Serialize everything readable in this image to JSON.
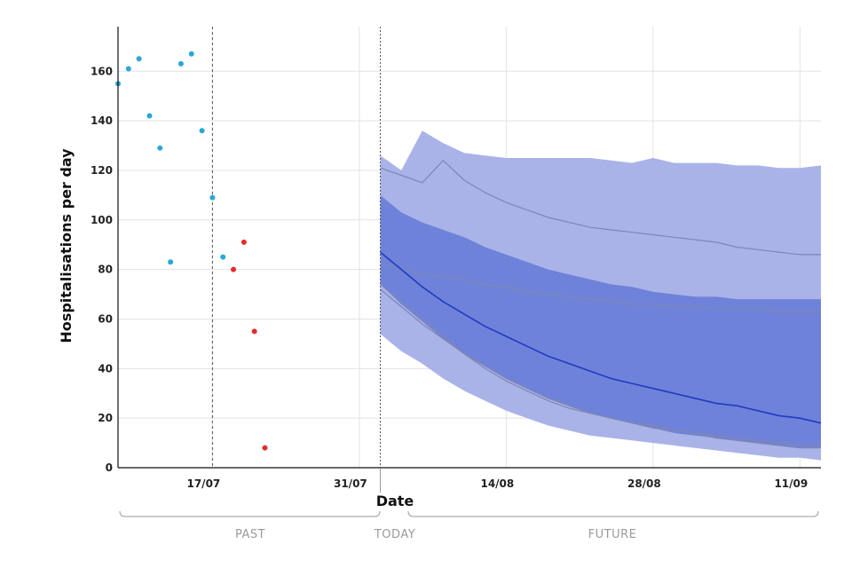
{
  "chart_data": {
    "type": "line",
    "title": "",
    "xlabel": "Date",
    "ylabel": "Hospitalisations per day",
    "ylim": [
      0,
      178
    ],
    "yticks": [
      0,
      20,
      40,
      60,
      80,
      100,
      120,
      140,
      160
    ],
    "xticks": [
      {
        "day": 17,
        "label": "17/07"
      },
      {
        "day": 31,
        "label": "31/07"
      },
      {
        "day": 45,
        "label": "14/08"
      },
      {
        "day": 59,
        "label": "28/08"
      },
      {
        "day": 73,
        "label": "11/09"
      }
    ],
    "xlim": [
      8,
      75
    ],
    "grid": true,
    "markers": {
      "past_line_day": 17,
      "today_day": 33
    },
    "period_labels": {
      "past": "PAST",
      "today": "TODAY",
      "future": "FUTURE"
    },
    "colors": {
      "past_points": "#2aa7d6",
      "recent_points": "#e52b2b",
      "band_outer": "#a9b3e8",
      "band_inner": "#6f82d9",
      "median": "#1f3bc4",
      "scenario": "#7f86b4",
      "grid": "#e3e3e3"
    },
    "observed": [
      {
        "day": 8.0,
        "value": 155
      },
      {
        "day": 9.0,
        "value": 161
      },
      {
        "day": 10.0,
        "value": 165
      },
      {
        "day": 11.0,
        "value": 142
      },
      {
        "day": 12.0,
        "value": 129
      },
      {
        "day": 13.0,
        "value": 83
      },
      {
        "day": 14.0,
        "value": 163
      },
      {
        "day": 15.0,
        "value": 167
      },
      {
        "day": 16.0,
        "value": 136
      },
      {
        "day": 17.0,
        "value": 109
      },
      {
        "day": 18.0,
        "value": 85
      }
    ],
    "recent": [
      {
        "day": 19.0,
        "value": 80
      },
      {
        "day": 20.0,
        "value": 91
      },
      {
        "day": 21.0,
        "value": 55
      },
      {
        "day": 22.0,
        "value": 8
      }
    ],
    "forecast_days": [
      33,
      35,
      37,
      39,
      41,
      43,
      45,
      47,
      49,
      51,
      53,
      55,
      57,
      59,
      61,
      63,
      65,
      67,
      69,
      71,
      73,
      75
    ],
    "band_outer_upper": [
      126,
      120,
      136,
      131,
      127,
      126,
      125,
      125,
      125,
      125,
      125,
      124,
      123,
      125,
      123,
      123,
      123,
      122,
      122,
      121,
      121,
      122
    ],
    "band_outer_lower": [
      54,
      47,
      42,
      36,
      31,
      27,
      23,
      20,
      17,
      15,
      13,
      12,
      11,
      10,
      9,
      8,
      7,
      6,
      5,
      4,
      4,
      3
    ],
    "band_inner_upper": [
      110,
      103,
      99,
      96,
      93,
      89,
      86,
      83,
      80,
      78,
      76,
      74,
      73,
      71,
      70,
      69,
      69,
      68,
      68,
      68,
      68,
      68
    ],
    "band_inner_lower": [
      74,
      66,
      59,
      52,
      46,
      41,
      36,
      32,
      28,
      25,
      22,
      20,
      18,
      16,
      14,
      13,
      12,
      11,
      10,
      9,
      8,
      8
    ],
    "median": [
      87,
      80,
      73,
      67,
      62,
      57,
      53,
      49,
      45,
      42,
      39,
      36,
      34,
      32,
      30,
      28,
      26,
      25,
      23,
      21,
      20,
      18
    ],
    "scenarios": [
      {
        "name": "scenario_high",
        "values": [
          121,
          118,
          115,
          124,
          116,
          111,
          107,
          104,
          101,
          99,
          97,
          96,
          95,
          94,
          93,
          92,
          91,
          89,
          88,
          87,
          86,
          86
        ]
      },
      {
        "name": "scenario_mid",
        "values": [
          83,
          80,
          78,
          77,
          76,
          74,
          73,
          71,
          70,
          69,
          68,
          67,
          66,
          66,
          65,
          65,
          64,
          64,
          64,
          63,
          63,
          63
        ]
      },
      {
        "name": "scenario_low_a",
        "values": [
          74,
          67,
          60,
          53,
          46,
          40,
          35,
          31,
          27,
          24,
          22,
          20,
          18,
          16,
          15,
          14,
          13,
          12,
          11,
          10,
          9,
          9
        ]
      },
      {
        "name": "scenario_low_b",
        "values": [
          72,
          65,
          58,
          52,
          46,
          41,
          36,
          32,
          28,
          25,
          22,
          20,
          18,
          17,
          15,
          14,
          12,
          11,
          10,
          9,
          8,
          8
        ]
      }
    ]
  }
}
